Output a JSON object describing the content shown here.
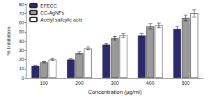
{
  "chart_data": {
    "type": "bar",
    "x_label": "Concentration (µg/ml)",
    "y_label": "% Inhibition",
    "categories": [
      "100",
      "200",
      "300",
      "400",
      "500"
    ],
    "series": [
      {
        "name": "EFECC",
        "color": "#2b2a6e",
        "values": [
          13,
          20,
          36,
          46,
          53
        ],
        "errors": [
          0.6,
          0.8,
          1.2,
          2,
          3
        ]
      },
      {
        "name": "CC-AgNPs",
        "color": "#9a9a9a",
        "values": [
          17,
          27,
          43,
          56,
          65
        ],
        "errors": [
          0.8,
          1.2,
          2,
          3,
          3
        ]
      },
      {
        "name": "Acetyl salicylic acid",
        "color": "#ffffff",
        "values": [
          20,
          32,
          46,
          57,
          70
        ],
        "errors": [
          1.2,
          1.5,
          2,
          2.5,
          4
        ]
      }
    ],
    "ylim": [
      0,
      80
    ],
    "yticks": [
      0,
      10,
      20,
      30,
      40,
      50,
      60,
      70,
      80
    ],
    "grid": false,
    "legend": "upper left"
  }
}
